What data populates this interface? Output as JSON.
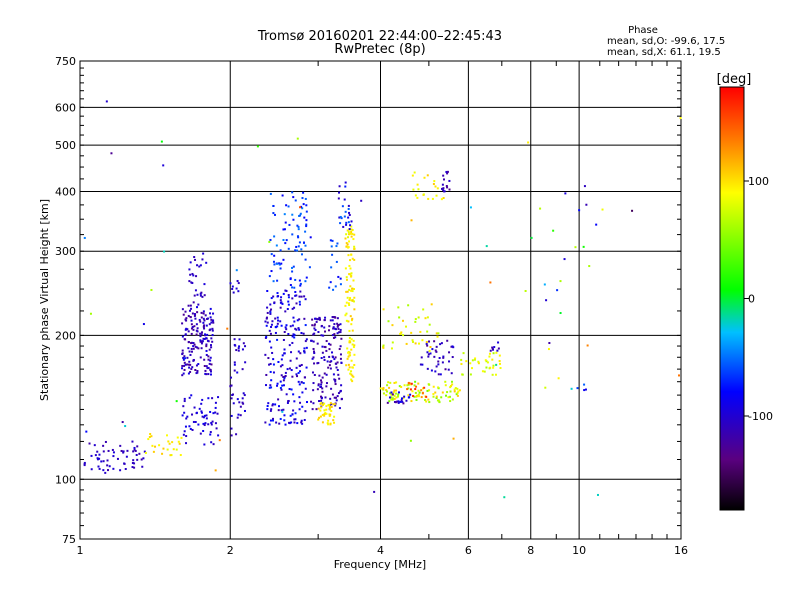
{
  "chart_data": {
    "type": "scatter",
    "title": "Tromsø 20160201 22:44:00–22:45:43",
    "subtitle": "RwPretec (8p)",
    "xlabel": "Frequency [MHz]",
    "ylabel": "Stationary phase Virtual Height [km]",
    "x_scale": "log",
    "y_scale": "log",
    "xlim": [
      1,
      16
    ],
    "ylim": [
      75,
      750
    ],
    "x_ticks": [
      1,
      2,
      4,
      6,
      8,
      10,
      16
    ],
    "x_tick_labels": [
      "1",
      "2",
      "4",
      "6",
      "8",
      "10",
      "16"
    ],
    "y_ticks": [
      75,
      100,
      200,
      300,
      400,
      500,
      600,
      750
    ],
    "y_tick_labels": [
      "75",
      "100",
      "200",
      "300",
      "400",
      "500",
      "600",
      "750"
    ],
    "grid": true,
    "stats": {
      "heading": "Phase",
      "line_o": "mean, sd,O: -99.6, 17.5",
      "line_x": "mean, sd,X:  61.1, 19.5"
    },
    "colorbar": {
      "label": "[deg]",
      "range": [
        -180,
        180
      ],
      "ticks": [
        100,
        0,
        -100
      ],
      "tick_labels": [
        "100",
        "0",
        "-100"
      ]
    },
    "clusters": [
      {
        "f": [
          1.02,
          1.35
        ],
        "h": [
          103,
          120
        ],
        "p": [
          -120,
          -95
        ],
        "n": 60
      },
      {
        "f": [
          1.3,
          1.6
        ],
        "h": [
          112,
          125
        ],
        "p": [
          80,
          110
        ],
        "n": 25
      },
      {
        "f": [
          1.6,
          1.85
        ],
        "h": [
          165,
          230
        ],
        "p": [
          -130,
          -90
        ],
        "n": 170
      },
      {
        "f": [
          1.65,
          1.8
        ],
        "h": [
          230,
          300
        ],
        "p": [
          -120,
          -95
        ],
        "n": 30
      },
      {
        "f": [
          1.6,
          1.9
        ],
        "h": [
          118,
          150
        ],
        "p": [
          -110,
          -85
        ],
        "n": 60
      },
      {
        "f": [
          2.0,
          2.15
        ],
        "h": [
          120,
          200
        ],
        "p": [
          -115,
          -90
        ],
        "n": 40
      },
      {
        "f": [
          2.0,
          2.1
        ],
        "h": [
          245,
          265
        ],
        "p": [
          -110,
          -95
        ],
        "n": 8
      },
      {
        "f": [
          2.35,
          2.85
        ],
        "h": [
          130,
          250
        ],
        "p": [
          -120,
          -70
        ],
        "n": 220
      },
      {
        "f": [
          2.4,
          2.9
        ],
        "h": [
          250,
          400
        ],
        "p": [
          -85,
          -45
        ],
        "n": 90
      },
      {
        "f": [
          2.9,
          3.35
        ],
        "h": [
          140,
          220
        ],
        "p": [
          -130,
          -95
        ],
        "n": 160
      },
      {
        "f": [
          3.0,
          3.25
        ],
        "h": [
          130,
          145
        ],
        "p": [
          85,
          110
        ],
        "n": 40
      },
      {
        "f": [
          3.4,
          3.55
        ],
        "h": [
          160,
          340
        ],
        "p": [
          80,
          110
        ],
        "n": 110
      },
      {
        "f": [
          3.3,
          3.5
        ],
        "h": [
          330,
          420
        ],
        "p": [
          -110,
          -50
        ],
        "n": 25
      },
      {
        "f": [
          3.15,
          3.35
        ],
        "h": [
          240,
          320
        ],
        "p": [
          -85,
          -50
        ],
        "n": 15
      },
      {
        "f": [
          4.0,
          5.8
        ],
        "h": [
          145,
          160
        ],
        "p": [
          40,
          110
        ],
        "n": 100
      },
      {
        "f": [
          4.1,
          4.6
        ],
        "h": [
          143,
          152
        ],
        "p": [
          -130,
          -80
        ],
        "n": 20
      },
      {
        "f": [
          4.5,
          5.0
        ],
        "h": [
          148,
          160
        ],
        "p": [
          120,
          170
        ],
        "n": 15
      },
      {
        "f": [
          4.8,
          5.6
        ],
        "h": [
          165,
          195
        ],
        "p": [
          -130,
          -90
        ],
        "n": 40
      },
      {
        "f": [
          4.0,
          5.3
        ],
        "h": [
          185,
          235
        ],
        "p": [
          60,
          110
        ],
        "n": 40
      },
      {
        "f": [
          4.6,
          5.4
        ],
        "h": [
          380,
          440
        ],
        "p": [
          80,
          110
        ],
        "n": 20
      },
      {
        "f": [
          5.3,
          5.5
        ],
        "h": [
          400,
          440
        ],
        "p": [
          -130,
          -95
        ],
        "n": 15
      },
      {
        "f": [
          5.8,
          7.0
        ],
        "h": [
          165,
          185
        ],
        "p": [
          60,
          100
        ],
        "n": 35
      },
      {
        "f": [
          6.6,
          7.0
        ],
        "h": [
          185,
          195
        ],
        "p": [
          -120,
          -95
        ],
        "n": 8
      },
      {
        "f": [
          8.0,
          10.5
        ],
        "h": [
          150,
          450
        ],
        "p": [
          -130,
          100
        ],
        "n": 22
      },
      {
        "f": [
          1.0,
          16.0
        ],
        "h": [
          80,
          650
        ],
        "p": [
          -150,
          150
        ],
        "n": 45
      }
    ]
  }
}
